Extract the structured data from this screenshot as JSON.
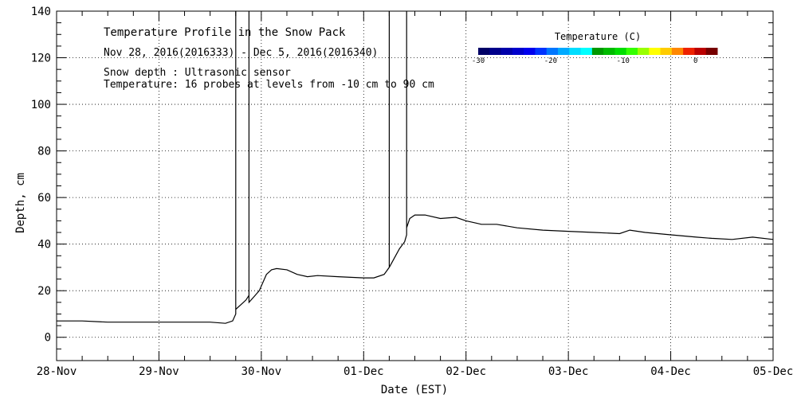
{
  "chart_data": {
    "type": "line",
    "title": "Temperature Profile in the Snow Pack",
    "subtitle": "Nov 28, 2016(2016333) - Dec  5, 2016(2016340)",
    "annotations": [
      "Snow depth : Ultrasonic sensor",
      "Temperature: 16 probes at levels from -10 cm to 90 cm"
    ],
    "xlabel": "Date (EST)",
    "ylabel": "Depth, cm",
    "xlim": [
      0,
      7
    ],
    "ylim": [
      -10,
      140
    ],
    "x_ticks": [
      0,
      1,
      2,
      3,
      4,
      5,
      6,
      7
    ],
    "x_tick_labels": [
      "28-Nov",
      "29-Nov",
      "30-Nov",
      "01-Dec",
      "02-Dec",
      "03-Dec",
      "04-Dec",
      "05-Dec"
    ],
    "y_ticks": [
      0,
      20,
      40,
      60,
      80,
      100,
      120,
      140
    ],
    "y_tick_labels": [
      "0",
      "20",
      "40",
      "60",
      "80",
      "100",
      "120",
      "140"
    ],
    "grid": true,
    "series": [
      {
        "x": [
          0.0,
          0.25,
          0.5,
          0.75,
          1.0,
          1.25,
          1.5,
          1.65,
          1.72,
          1.75,
          1.75,
          1.75,
          1.8,
          1.85,
          1.88,
          1.88,
          1.88,
          1.92,
          1.98,
          2.05,
          2.1,
          2.15,
          2.25,
          2.35,
          2.45,
          2.55,
          2.75,
          3.0,
          3.1,
          3.2,
          3.25,
          3.25,
          3.25,
          3.3,
          3.35,
          3.4,
          3.42,
          3.42,
          3.42,
          3.45,
          3.5,
          3.6,
          3.75,
          3.9,
          4.0,
          4.1,
          4.15,
          4.3,
          4.5,
          4.75,
          5.0,
          5.25,
          5.5,
          5.6,
          5.75,
          6.0,
          6.25,
          6.4,
          6.6,
          6.8,
          7.0
        ],
        "y": [
          7,
          7,
          6.5,
          6.5,
          6.5,
          6.5,
          6.5,
          6,
          7,
          10,
          140,
          12,
          14,
          16,
          18,
          140,
          15,
          17,
          20,
          27,
          29,
          29.5,
          29,
          27,
          26,
          26.5,
          26,
          25.5,
          25.5,
          27,
          30,
          140,
          30,
          34,
          38,
          41,
          44,
          140,
          47,
          51,
          52.5,
          52.5,
          51,
          51.5,
          50,
          49,
          48.5,
          48.5,
          47,
          46,
          45.5,
          45,
          44.5,
          46,
          45,
          44,
          43,
          42.5,
          42,
          43,
          42
        ]
      }
    ],
    "colorbar": {
      "title": "Temperature (C)",
      "range": [
        -30,
        3
      ],
      "tick_values": [
        -30,
        -20,
        -10,
        0
      ],
      "tick_labels": [
        "-30",
        "-20",
        "-10",
        "0"
      ],
      "colors": [
        "#000066",
        "#00008b",
        "#0000aa",
        "#0000cc",
        "#0000ee",
        "#0033ff",
        "#0077ff",
        "#00aaff",
        "#00ddff",
        "#00ffff",
        "#009900",
        "#00bb00",
        "#00dd00",
        "#33ff00",
        "#99ff00",
        "#ffff00",
        "#ffcc00",
        "#ff8800",
        "#ee2200",
        "#bb0000",
        "#770000"
      ]
    }
  }
}
